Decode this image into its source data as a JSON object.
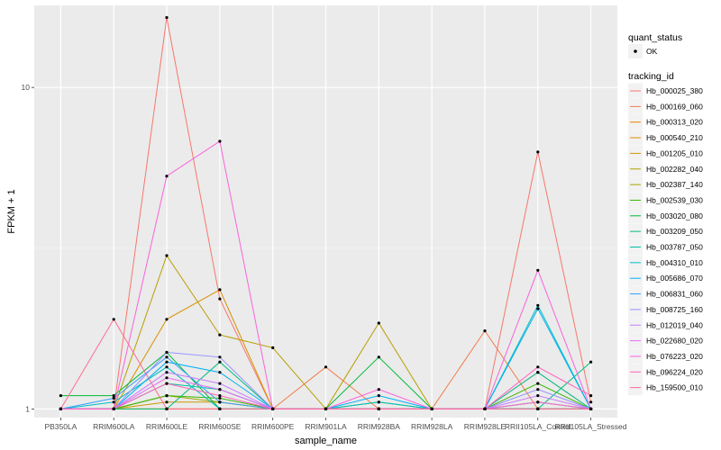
{
  "chart_data": {
    "type": "line",
    "xlabel": "sample_name",
    "ylabel": "FPKM + 1",
    "y_scale": "log10",
    "ylim": [
      0.94,
      18
    ],
    "y_ticks": [
      {
        "value": 1,
        "label": "1"
      },
      {
        "value": 10,
        "label": "10"
      }
    ],
    "grid": true,
    "categories": [
      "PB350LA",
      "RRIM600LA",
      "RRIM600LE",
      "RRIM600SE",
      "RRIM600PE",
      "RRIM901LA",
      "RRIM928BA",
      "RRIM928LA",
      "RRIM928LE",
      "RRII105LA_Control",
      "RRII105LA_Stressed"
    ],
    "legend_placement": "right",
    "point_legend": {
      "title": "quant_status",
      "entries": [
        {
          "label": "OK",
          "color": "#000000"
        }
      ]
    },
    "color_legend_title": "tracking_id",
    "series": [
      {
        "name": "Hb_000025_380",
        "color": "#F8766D",
        "values": [
          1.0,
          1.0,
          16.5,
          2.2,
          1.0,
          1.0,
          1.0,
          1.0,
          1.0,
          6.3,
          1.05
        ]
      },
      {
        "name": "Hb_000169_060",
        "color": "#F07E4D",
        "values": [
          1.0,
          1.0,
          1.0,
          1.0,
          1.0,
          1.35,
          1.0,
          1.0,
          1.75,
          1.0,
          1.0
        ]
      },
      {
        "name": "Hb_000313_020",
        "color": "#E58700",
        "values": [
          1.0,
          1.0,
          1.0,
          1.0,
          1.0,
          1.0,
          1.0,
          1.0,
          1.0,
          1.3,
          1.0
        ]
      },
      {
        "name": "Hb_000540_210",
        "color": "#D89000",
        "values": [
          1.0,
          1.0,
          1.9,
          2.35,
          1.0,
          1.0,
          1.0,
          1.0,
          1.0,
          1.0,
          1.0
        ]
      },
      {
        "name": "Hb_001205_010",
        "color": "#C99800",
        "values": [
          1.0,
          1.0,
          1.05,
          1.05,
          1.0,
          1.0,
          1.0,
          1.0,
          1.0,
          1.05,
          1.0
        ]
      },
      {
        "name": "Hb_002282_040",
        "color": "#B79F00",
        "values": [
          1.0,
          1.0,
          3.0,
          1.7,
          1.55,
          1.0,
          1.85,
          1.0,
          1.0,
          1.0,
          1.0
        ]
      },
      {
        "name": "Hb_002387_140",
        "color": "#A3A500",
        "values": [
          1.0,
          1.0,
          1.1,
          1.05,
          1.0,
          1.0,
          1.0,
          1.0,
          1.0,
          1.05,
          1.0
        ]
      },
      {
        "name": "Hb_002539_030",
        "color": "#39B600",
        "values": [
          1.0,
          1.0,
          1.1,
          1.08,
          1.0,
          1.0,
          1.05,
          1.0,
          1.0,
          1.2,
          1.0
        ]
      },
      {
        "name": "Hb_003020_080",
        "color": "#00BA38",
        "values": [
          1.1,
          1.1,
          1.5,
          1.0,
          1.0,
          1.0,
          1.45,
          1.0,
          1.0,
          1.0,
          1.0
        ]
      },
      {
        "name": "Hb_003209_050",
        "color": "#00BF7D",
        "values": [
          1.0,
          1.0,
          1.0,
          1.4,
          1.0,
          1.0,
          1.0,
          1.0,
          1.0,
          1.0,
          1.4
        ]
      },
      {
        "name": "Hb_003787_050",
        "color": "#00C1A3",
        "values": [
          1.0,
          1.0,
          1.2,
          1.15,
          1.0,
          1.0,
          1.0,
          1.0,
          1.0,
          1.3,
          1.0
        ]
      },
      {
        "name": "Hb_004310_010",
        "color": "#00BFC4",
        "values": [
          1.0,
          1.05,
          1.35,
          1.0,
          1.0,
          1.0,
          1.05,
          1.0,
          1.0,
          2.1,
          1.0
        ]
      },
      {
        "name": "Hb_005686_070",
        "color": "#00B0F6",
        "values": [
          1.0,
          1.0,
          1.4,
          1.3,
          1.0,
          1.0,
          1.1,
          1.0,
          1.0,
          2.05,
          1.0
        ]
      },
      {
        "name": "Hb_006831_060",
        "color": "#35A2FF",
        "values": [
          1.0,
          1.08,
          1.45,
          1.05,
          1.0,
          1.0,
          1.0,
          1.0,
          1.0,
          1.0,
          1.0
        ]
      },
      {
        "name": "Hb_008725_160",
        "color": "#9590FF",
        "values": [
          1.0,
          1.0,
          1.5,
          1.45,
          1.0,
          1.0,
          1.0,
          1.0,
          1.0,
          1.15,
          1.0
        ]
      },
      {
        "name": "Hb_012019_040",
        "color": "#C77CFF",
        "values": [
          1.0,
          1.0,
          1.3,
          1.2,
          1.0,
          1.0,
          1.0,
          1.0,
          1.0,
          1.1,
          1.0
        ]
      },
      {
        "name": "Hb_022680_020",
        "color": "#E76BF3",
        "values": [
          1.0,
          1.0,
          1.25,
          1.15,
          1.0,
          1.0,
          1.0,
          1.0,
          1.0,
          1.05,
          1.0
        ]
      },
      {
        "name": "Hb_076223_020",
        "color": "#FA62DB",
        "values": [
          1.0,
          1.0,
          5.3,
          6.8,
          1.0,
          1.0,
          1.15,
          1.0,
          1.0,
          2.7,
          1.0
        ]
      },
      {
        "name": "Hb_096224_020",
        "color": "#FF62BC",
        "values": [
          1.0,
          1.0,
          1.2,
          1.1,
          1.0,
          1.0,
          1.0,
          1.0,
          1.0,
          1.35,
          1.1
        ]
      },
      {
        "name": "Hb_159500_010",
        "color": "#FF6C91",
        "values": [
          1.0,
          1.9,
          1.0,
          1.0,
          1.0,
          1.0,
          1.0,
          1.0,
          1.0,
          1.0,
          1.0
        ]
      }
    ]
  }
}
